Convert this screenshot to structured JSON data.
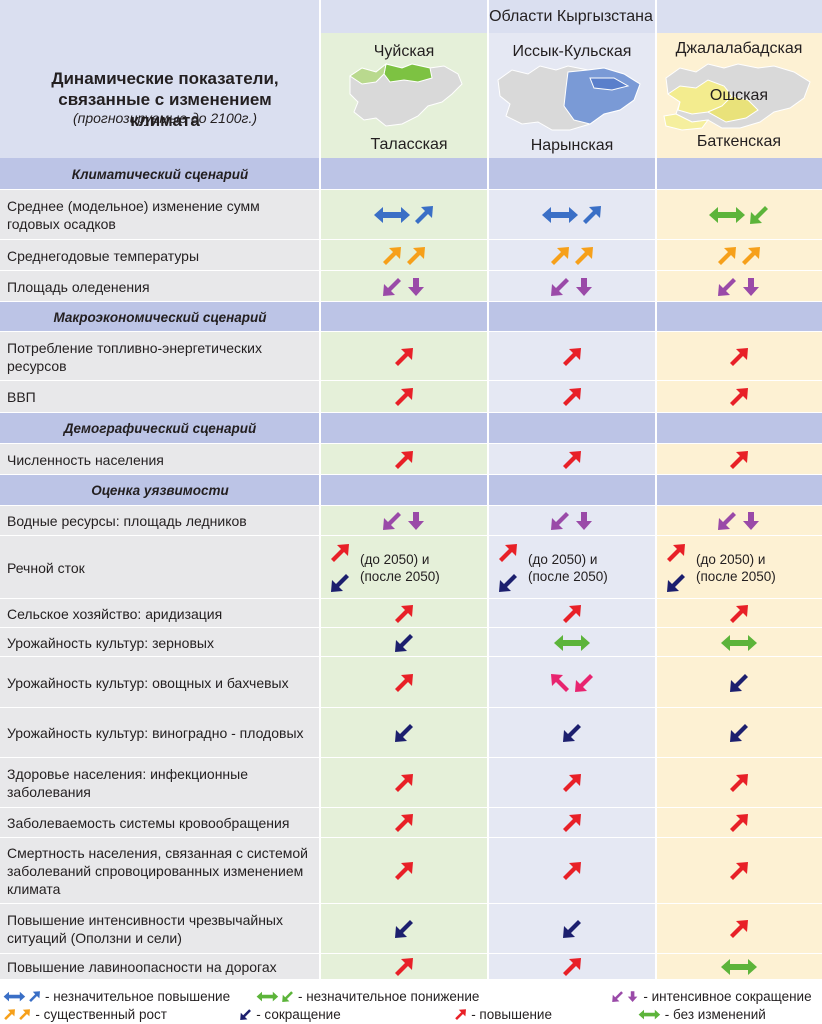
{
  "header": {
    "regions_title": "Области Кыргызстана",
    "main_title": "Динамические показатели, связанные с изменением климата",
    "subtitle": "(прогнозируемые до 2100г.)",
    "region_top": [
      "Чуйская",
      "Иссык-Кульская",
      "Джалалабадская"
    ],
    "region_mid": [
      "",
      "",
      "Ошская"
    ],
    "region_bottom": [
      "Таласская",
      "Нарынская",
      "Баткенская"
    ]
  },
  "colors": {
    "blue": "#3a6fc6",
    "orange": "#f6a01a",
    "purple": "#9a4aa8",
    "green": "#5cb43a",
    "red": "#e82027",
    "navy": "#1c1f6e",
    "pink": "#e8246f"
  },
  "rows": [
    {
      "type": "section",
      "label": "Климатический сценарий"
    },
    {
      "type": "data",
      "label": "Среднее (модельное) изменение сумм годовых осадков",
      "cells": [
        [
          "blue-dbl",
          "blue-up"
        ],
        [
          "blue-dbl",
          "blue-up"
        ],
        [
          "green-dbl",
          "green-down"
        ]
      ]
    },
    {
      "type": "data",
      "label": "Среднегодовые температуры",
      "cells": [
        [
          "orange-up",
          "orange-up"
        ],
        [
          "orange-up",
          "orange-up"
        ],
        [
          "orange-up",
          "orange-up"
        ]
      ]
    },
    {
      "type": "data",
      "label": "Площадь оледенения",
      "cells": [
        [
          "purple-down",
          "purple-vdown"
        ],
        [
          "purple-down",
          "purple-vdown"
        ],
        [
          "purple-down",
          "purple-vdown"
        ]
      ]
    },
    {
      "type": "section",
      "label": "Макроэкономический сценарий"
    },
    {
      "type": "data",
      "label": "Потребление топливно-энергетических ресурсов",
      "cells": [
        [
          "red-up"
        ],
        [
          "red-up"
        ],
        [
          "red-up"
        ]
      ]
    },
    {
      "type": "data",
      "label": "ВВП",
      "cells": [
        [
          "red-up"
        ],
        [
          "red-up"
        ],
        [
          "red-up"
        ]
      ]
    },
    {
      "type": "section",
      "label": "Демографический сценарий"
    },
    {
      "type": "data",
      "label": "Численность  населения",
      "cells": [
        [
          "red-up"
        ],
        [
          "red-up"
        ],
        [
          "red-up"
        ]
      ]
    },
    {
      "type": "section",
      "label": "Оценка уязвимости"
    },
    {
      "type": "data",
      "label": "Водные ресурсы: площадь ледников",
      "cells": [
        [
          "purple-down",
          "purple-vdown"
        ],
        [
          "purple-down",
          "purple-vdown"
        ],
        [
          "purple-down",
          "purple-vdown"
        ]
      ]
    },
    {
      "type": "runoff",
      "label": "Речной сток",
      "note1": "(до 2050) и",
      "note2": "(после 2050)"
    },
    {
      "type": "data",
      "label": "Сельское хозяйство: аридизация",
      "cells": [
        [
          "red-up"
        ],
        [
          "red-up"
        ],
        [
          "red-up"
        ]
      ]
    },
    {
      "type": "data",
      "label": "Урожайность культур: зерновых",
      "cells": [
        [
          "navy-down"
        ],
        [
          "green-dbl"
        ],
        [
          "green-dbl"
        ]
      ]
    },
    {
      "type": "data",
      "label": "Урожайность культур: овощных и бахчевых",
      "cells": [
        [
          "red-up"
        ],
        [
          "pink-upleft",
          "pink-down"
        ],
        [
          "navy-down"
        ]
      ]
    },
    {
      "type": "data",
      "label": "Урожайность культур: виноградно - плодовых",
      "cells": [
        [
          "navy-down"
        ],
        [
          "navy-down"
        ],
        [
          "navy-down"
        ]
      ]
    },
    {
      "type": "data",
      "label": "Здоровье населения: инфекционные заболевания",
      "cells": [
        [
          "red-up"
        ],
        [
          "red-up"
        ],
        [
          "red-up"
        ]
      ]
    },
    {
      "type": "data",
      "label": "Заболеваемость системы кровообращения",
      "cells": [
        [
          "red-up"
        ],
        [
          "red-up"
        ],
        [
          "red-up"
        ]
      ]
    },
    {
      "type": "data",
      "label": "Смертность населения, связанная с системой заболеваний спровоцированных изменением климата",
      "cells": [
        [
          "red-up"
        ],
        [
          "red-up"
        ],
        [
          "red-up"
        ]
      ]
    },
    {
      "type": "data",
      "label": "Повышение интенсивности чрезвычайных ситуаций (Оползни и  сели)",
      "cells": [
        [
          "navy-down"
        ],
        [
          "navy-down"
        ],
        [
          "red-up"
        ]
      ]
    },
    {
      "type": "data",
      "label": "Повышение лавиноопасности на дорогах",
      "cells": [
        [
          "red-up"
        ],
        [
          "red-up"
        ],
        [
          "green-dbl"
        ]
      ]
    }
  ],
  "legend": [
    {
      "icons": [
        "blue-dbl-s",
        "blue-up-s"
      ],
      "text": "- незначительное повышение"
    },
    {
      "icons": [
        "green-dbl-s",
        "green-down-s"
      ],
      "text": "- незначительное понижение"
    },
    {
      "icons": [
        "purple-down-s",
        "purple-vdown-s"
      ],
      "text": "- интенсивное сокращение"
    },
    {
      "icons": [
        "orange-up-s",
        "orange-up-s"
      ],
      "text": "- существенный рост"
    },
    {
      "icons": [
        "navy-down-s"
      ],
      "text": "- сокращение"
    },
    {
      "icons": [
        "red-up-s"
      ],
      "text": "- повышение"
    },
    {
      "icons": [
        "green-dbl-s"
      ],
      "text": "- без изменений"
    }
  ]
}
